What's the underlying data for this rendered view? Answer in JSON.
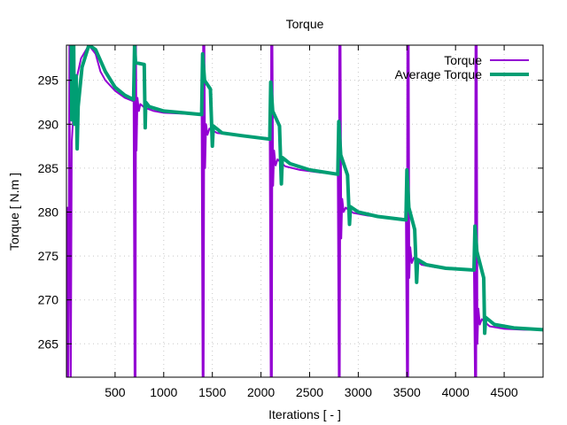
{
  "chart_data": {
    "type": "line",
    "title": "Torque",
    "xlabel": "Iterations [ - ]",
    "ylabel": "Torque [ N.m ]",
    "xlim": [
      0,
      4900
    ],
    "ylim": [
      261.2,
      299.0
    ],
    "x_ticks": [
      500,
      1000,
      1500,
      2000,
      2500,
      3000,
      3500,
      4000,
      4500
    ],
    "y_ticks": [
      265,
      270,
      275,
      280,
      285,
      290,
      295
    ],
    "x_tick_labels": [
      "500",
      "1000",
      "1500",
      "2000",
      "2500",
      "3000",
      "3500",
      "4000",
      "4500"
    ],
    "y_tick_labels": [
      "265",
      "270",
      "275",
      "280",
      "285",
      "290",
      "295"
    ],
    "grid": true,
    "legend_position": "top-right",
    "series": [
      {
        "name": "Torque",
        "color": "#9400d3",
        "points": [
          [
            1,
            261.2
          ],
          [
            10,
            280.5
          ],
          [
            20,
            261.2
          ],
          [
            30,
            299.0
          ],
          [
            45,
            261.2
          ],
          [
            55,
            288.0
          ],
          [
            70,
            291.0
          ],
          [
            100,
            295.0
          ],
          [
            150,
            297.5
          ],
          [
            230,
            299.0
          ],
          [
            300,
            298.0
          ],
          [
            350,
            296.0
          ],
          [
            400,
            295.0
          ],
          [
            500,
            293.8
          ],
          [
            600,
            293.0
          ],
          [
            690,
            292.6
          ],
          [
            700,
            261.2
          ],
          [
            705,
            299.0
          ],
          [
            710,
            261.2
          ],
          [
            715,
            299.0
          ],
          [
            720,
            287.0
          ],
          [
            730,
            293.0
          ],
          [
            745,
            291.5
          ],
          [
            760,
            292.3
          ],
          [
            800,
            291.9
          ],
          [
            900,
            291.5
          ],
          [
            1000,
            291.3
          ],
          [
            1200,
            291.2
          ],
          [
            1390,
            291.1
          ],
          [
            1400,
            261.2
          ],
          [
            1405,
            299.0
          ],
          [
            1410,
            261.2
          ],
          [
            1418,
            299.0
          ],
          [
            1425,
            285.0
          ],
          [
            1435,
            290.0
          ],
          [
            1450,
            288.8
          ],
          [
            1470,
            289.5
          ],
          [
            1550,
            289.0
          ],
          [
            1700,
            288.8
          ],
          [
            1900,
            288.6
          ],
          [
            2090,
            288.4
          ],
          [
            2100,
            261.2
          ],
          [
            2105,
            299.0
          ],
          [
            2112,
            261.2
          ],
          [
            2118,
            299.0
          ],
          [
            2125,
            283.0
          ],
          [
            2135,
            287.0
          ],
          [
            2150,
            285.3
          ],
          [
            2170,
            286.0
          ],
          [
            2250,
            285.2
          ],
          [
            2400,
            284.8
          ],
          [
            2600,
            284.5
          ],
          [
            2790,
            284.3
          ],
          [
            2800,
            261.2
          ],
          [
            2805,
            299.0
          ],
          [
            2810,
            261.2
          ],
          [
            2818,
            299.0
          ],
          [
            2825,
            277.0
          ],
          [
            2835,
            281.5
          ],
          [
            2850,
            280.0
          ],
          [
            2870,
            280.5
          ],
          [
            2950,
            279.9
          ],
          [
            3100,
            279.6
          ],
          [
            3300,
            279.4
          ],
          [
            3490,
            279.2
          ],
          [
            3500,
            261.2
          ],
          [
            3505,
            299.0
          ],
          [
            3512,
            261.2
          ],
          [
            3518,
            299.0
          ],
          [
            3525,
            272.5
          ],
          [
            3535,
            276.0
          ],
          [
            3550,
            274.2
          ],
          [
            3570,
            274.8
          ],
          [
            3650,
            274.0
          ],
          [
            3800,
            273.7
          ],
          [
            4000,
            273.5
          ],
          [
            4190,
            273.4
          ],
          [
            4200,
            261.2
          ],
          [
            4205,
            299.0
          ],
          [
            4212,
            261.2
          ],
          [
            4218,
            299.0
          ],
          [
            4225,
            265.0
          ],
          [
            4235,
            269.0
          ],
          [
            4250,
            267.2
          ],
          [
            4270,
            267.8
          ],
          [
            4350,
            267.0
          ],
          [
            4500,
            266.7
          ],
          [
            4700,
            266.6
          ],
          [
            4900,
            266.6
          ]
        ]
      },
      {
        "name": "Average Torque",
        "color": "#009e73",
        "points": [
          [
            50,
            299.0
          ],
          [
            55,
            290.5
          ],
          [
            75,
            299.0
          ],
          [
            80,
            290.0
          ],
          [
            100,
            295.5
          ],
          [
            110,
            287.2
          ],
          [
            120,
            292.0
          ],
          [
            160,
            296.5
          ],
          [
            230,
            299.0
          ],
          [
            300,
            298.5
          ],
          [
            400,
            296.0
          ],
          [
            500,
            294.2
          ],
          [
            600,
            293.3
          ],
          [
            690,
            292.8
          ],
          [
            700,
            299.0
          ],
          [
            710,
            297.0
          ],
          [
            800,
            296.8
          ],
          [
            810,
            289.6
          ],
          [
            815,
            292.5
          ],
          [
            850,
            292.0
          ],
          [
            1000,
            291.5
          ],
          [
            1200,
            291.3
          ],
          [
            1390,
            291.1
          ],
          [
            1400,
            298.0
          ],
          [
            1420,
            295.0
          ],
          [
            1480,
            294.0
          ],
          [
            1500,
            287.5
          ],
          [
            1510,
            289.8
          ],
          [
            1600,
            289.0
          ],
          [
            1800,
            288.7
          ],
          [
            2090,
            288.3
          ],
          [
            2100,
            294.8
          ],
          [
            2120,
            291.5
          ],
          [
            2190,
            289.8
          ],
          [
            2210,
            283.2
          ],
          [
            2220,
            286.2
          ],
          [
            2300,
            285.5
          ],
          [
            2500,
            284.8
          ],
          [
            2790,
            284.3
          ],
          [
            2800,
            290.3
          ],
          [
            2820,
            286.5
          ],
          [
            2890,
            284.2
          ],
          [
            2910,
            278.6
          ],
          [
            2920,
            280.6
          ],
          [
            3000,
            280.0
          ],
          [
            3200,
            279.5
          ],
          [
            3490,
            279.1
          ],
          [
            3500,
            284.8
          ],
          [
            3520,
            280.5
          ],
          [
            3580,
            278.0
          ],
          [
            3600,
            272.0
          ],
          [
            3610,
            274.6
          ],
          [
            3700,
            274.0
          ],
          [
            3900,
            273.6
          ],
          [
            4190,
            273.4
          ],
          [
            4200,
            278.4
          ],
          [
            4220,
            275.5
          ],
          [
            4290,
            272.5
          ],
          [
            4300,
            266.2
          ],
          [
            4310,
            268.0
          ],
          [
            4400,
            267.2
          ],
          [
            4600,
            266.8
          ],
          [
            4900,
            266.6
          ]
        ]
      }
    ]
  }
}
